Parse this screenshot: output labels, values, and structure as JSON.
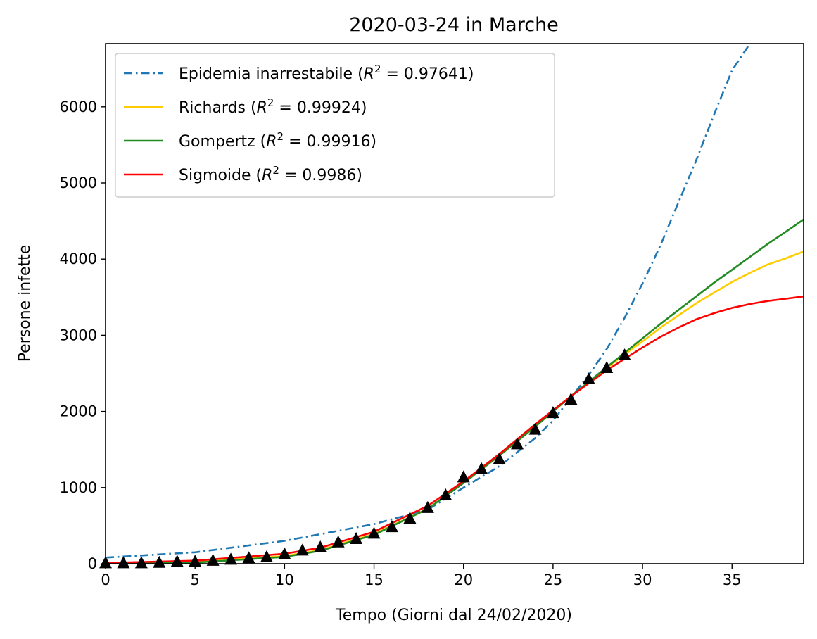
{
  "chart_data": {
    "type": "line",
    "title": "2020-03-24 in Marche",
    "xlabel": "Tempo (Giorni dal 24/02/2020)",
    "ylabel": "Persone infette",
    "xlim": [
      0,
      39
    ],
    "ylim": [
      0,
      6830
    ],
    "xticks": [
      0,
      5,
      10,
      15,
      20,
      25,
      30,
      35
    ],
    "yticks": [
      0,
      1000,
      2000,
      3000,
      4000,
      5000,
      6000
    ],
    "grid": false,
    "legend_position": "upper-left",
    "series": [
      {
        "name": "Epidemia inarrestabile",
        "r2": "0.97641",
        "color": "#1f77b4",
        "style": "dashdot",
        "x": [
          0,
          5,
          10,
          15,
          18,
          20,
          22,
          24,
          25,
          26,
          27,
          28,
          29,
          30,
          31,
          32,
          33,
          34,
          35,
          36
        ],
        "y": [
          80,
          150,
          300,
          520,
          710,
          1000,
          1280,
          1650,
          1880,
          2180,
          2480,
          2820,
          3230,
          3680,
          4180,
          4740,
          5300,
          5900,
          6480,
          6830
        ]
      },
      {
        "name": "Richards",
        "r2": "0.99924",
        "color": "#ffcc00",
        "style": "solid",
        "x": [
          0,
          5,
          10,
          12,
          15,
          18,
          20,
          22,
          24,
          26,
          28,
          29,
          30,
          31,
          32,
          33,
          34,
          35,
          36,
          37,
          38,
          39
        ],
        "y": [
          5,
          25,
          100,
          180,
          390,
          720,
          1060,
          1420,
          1800,
          2200,
          2570,
          2750,
          2920,
          3100,
          3260,
          3420,
          3560,
          3700,
          3820,
          3930,
          4010,
          4100
        ]
      },
      {
        "name": "Gompertz",
        "r2": "0.99916",
        "color": "#228b22",
        "style": "solid",
        "x": [
          0,
          5,
          10,
          12,
          15,
          18,
          20,
          22,
          24,
          26,
          28,
          29,
          30,
          31,
          32,
          33,
          34,
          35,
          36,
          37,
          38,
          39
        ],
        "y": [
          1,
          15,
          90,
          170,
          380,
          720,
          1060,
          1420,
          1800,
          2200,
          2580,
          2770,
          2960,
          3150,
          3330,
          3510,
          3690,
          3860,
          4030,
          4200,
          4360,
          4520
        ]
      },
      {
        "name": "Sigmoide",
        "r2": "0.9986",
        "color": "#ff0000",
        "style": "solid",
        "x": [
          0,
          5,
          10,
          12,
          15,
          18,
          20,
          22,
          24,
          26,
          28,
          29,
          30,
          31,
          32,
          33,
          34,
          35,
          36,
          37,
          38,
          39
        ],
        "y": [
          10,
          40,
          130,
          210,
          420,
          760,
          1080,
          1440,
          1830,
          2200,
          2540,
          2690,
          2840,
          2980,
          3100,
          3210,
          3290,
          3360,
          3410,
          3450,
          3480,
          3510
        ]
      }
    ],
    "observed": {
      "marker": "triangle",
      "color": "#000000",
      "x": [
        0,
        1,
        2,
        3,
        4,
        5,
        6,
        7,
        8,
        9,
        10,
        11,
        12,
        13,
        14,
        15,
        16,
        17,
        18,
        19,
        20,
        21,
        22,
        23,
        24,
        25,
        26,
        27,
        28,
        29
      ],
      "y": [
        6,
        6,
        6,
        11,
        25,
        25,
        38,
        52,
        72,
        84,
        124,
        172,
        212,
        279,
        323,
        394,
        479,
        592,
        731,
        898,
        1133,
        1242,
        1371,
        1568,
        1759,
        1977,
        2153,
        2421,
        2569,
        2736
      ]
    }
  }
}
